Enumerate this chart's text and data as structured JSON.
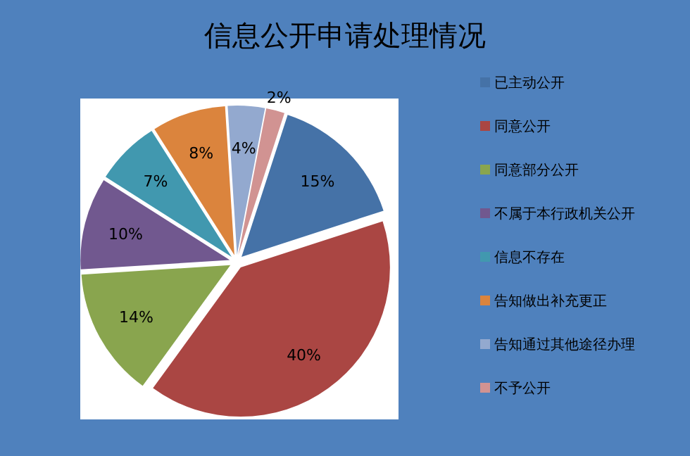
{
  "chart_data": {
    "type": "pie",
    "title": "信息公开申请处理情况",
    "categories": [
      "已主动公开",
      "同意公开",
      "同意部分公开",
      "不属于本行政机关公开",
      "信息不存在",
      "告知做出补充更正",
      "告知通过其他途径办理",
      "不予公开"
    ],
    "values": [
      15,
      40,
      14,
      10,
      7,
      8,
      4,
      2
    ],
    "value_labels": [
      "15%",
      "40%",
      "14%",
      "10%",
      "7%",
      "8%",
      "4%",
      "2%"
    ],
    "colors": [
      "#4572a7",
      "#aa4643",
      "#89a54e",
      "#71588f",
      "#4198af",
      "#db843d",
      "#93a9cf",
      "#d19392"
    ],
    "legend": "right"
  }
}
